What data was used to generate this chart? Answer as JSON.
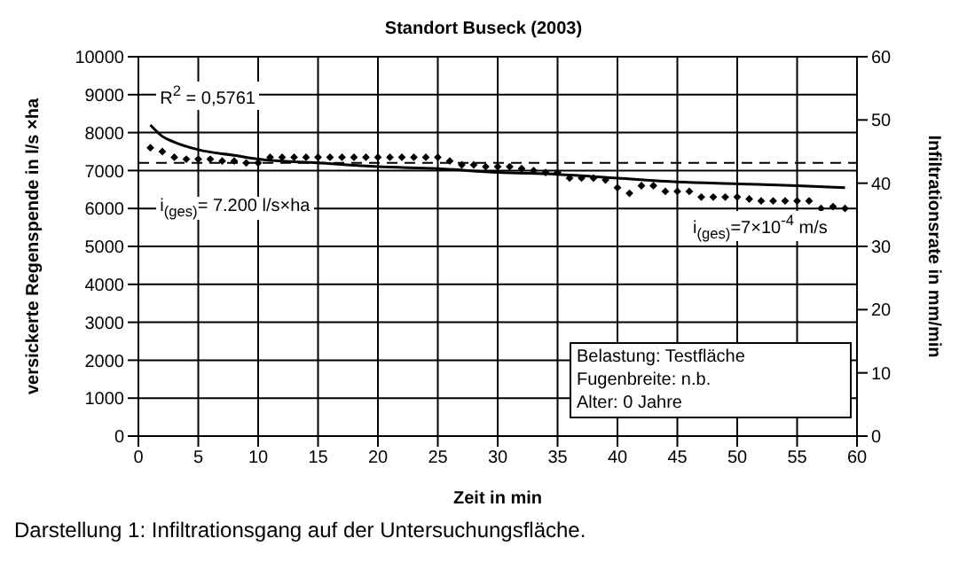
{
  "chart_data": {
    "type": "scatter",
    "title": "Standort Buseck (2003)",
    "xlabel": "Zeit in min",
    "ylabel": "versickerte Regenspende in l/s ×ha",
    "y2label": "Infiltrationsrate in mm/min",
    "xlim": [
      0,
      60
    ],
    "xticks": [
      0,
      5,
      10,
      15,
      20,
      25,
      30,
      35,
      40,
      45,
      50,
      55,
      60
    ],
    "ylim": [
      0,
      10000
    ],
    "yticks": [
      0,
      1000,
      2000,
      3000,
      4000,
      5000,
      6000,
      7000,
      8000,
      9000,
      10000
    ],
    "y2lim": [
      0,
      60
    ],
    "y2ticks": [
      0,
      10,
      20,
      30,
      40,
      50,
      60
    ],
    "grid": true,
    "marker": "diamond",
    "ref_lines": [
      {
        "axis": "y",
        "value": 7200,
        "line_style": "dashed",
        "color": "#000000"
      }
    ],
    "annotations": [
      "R$^{2}$ = 0,5761",
      "i$_{(ges)}$= 7.200 l/s×ha",
      "i$_{(ges)}$=7×10$^{-4}$ m/s",
      "Belastung: Testfläche",
      "Fugenbreite: n.b.",
      "Alter: 0 Jahre",
      "Darstellung 1: Infiltrationsgang auf der Untersuchungsfläche."
    ],
    "x": [
      1,
      2,
      3,
      4,
      5,
      6,
      7,
      8,
      9,
      10,
      11,
      12,
      13,
      14,
      15,
      16,
      17,
      18,
      19,
      20,
      21,
      22,
      23,
      24,
      25,
      26,
      27,
      28,
      29,
      30,
      31,
      32,
      33,
      34,
      35,
      36,
      37,
      38,
      39,
      40,
      41,
      42,
      43,
      44,
      45,
      46,
      47,
      48,
      49,
      50,
      51,
      52,
      53,
      54,
      55,
      56,
      57,
      58,
      59
    ],
    "series": [
      {
        "color": "#000000",
        "values": [
          7600,
          7500,
          7350,
          7300,
          7300,
          7300,
          7250,
          7250,
          7200,
          7200,
          7350,
          7350,
          7350,
          7350,
          7350,
          7350,
          7350,
          7350,
          7350,
          7350,
          7350,
          7350,
          7350,
          7350,
          7350,
          7250,
          7150,
          7150,
          7100,
          7100,
          7100,
          7050,
          7000,
          6950,
          6950,
          6800,
          6800,
          6800,
          6750,
          6550,
          6400,
          6600,
          6600,
          6450,
          6450,
          6450,
          6300,
          6300,
          6300,
          6300,
          6250,
          6200,
          6200,
          6200,
          6200,
          6200,
          6000,
          6050,
          6000
        ]
      },
      {
        "type": "line",
        "color": "#000000",
        "line_style": "solid",
        "marker": "none",
        "x": [
          1,
          2,
          3,
          5,
          8,
          10,
          15,
          20,
          25,
          30,
          35,
          40,
          45,
          50,
          55,
          59
        ],
        "values": [
          8200,
          7900,
          7750,
          7550,
          7400,
          7300,
          7200,
          7100,
          7050,
          6950,
          6900,
          6800,
          6700,
          6650,
          6600,
          6550
        ]
      }
    ]
  }
}
